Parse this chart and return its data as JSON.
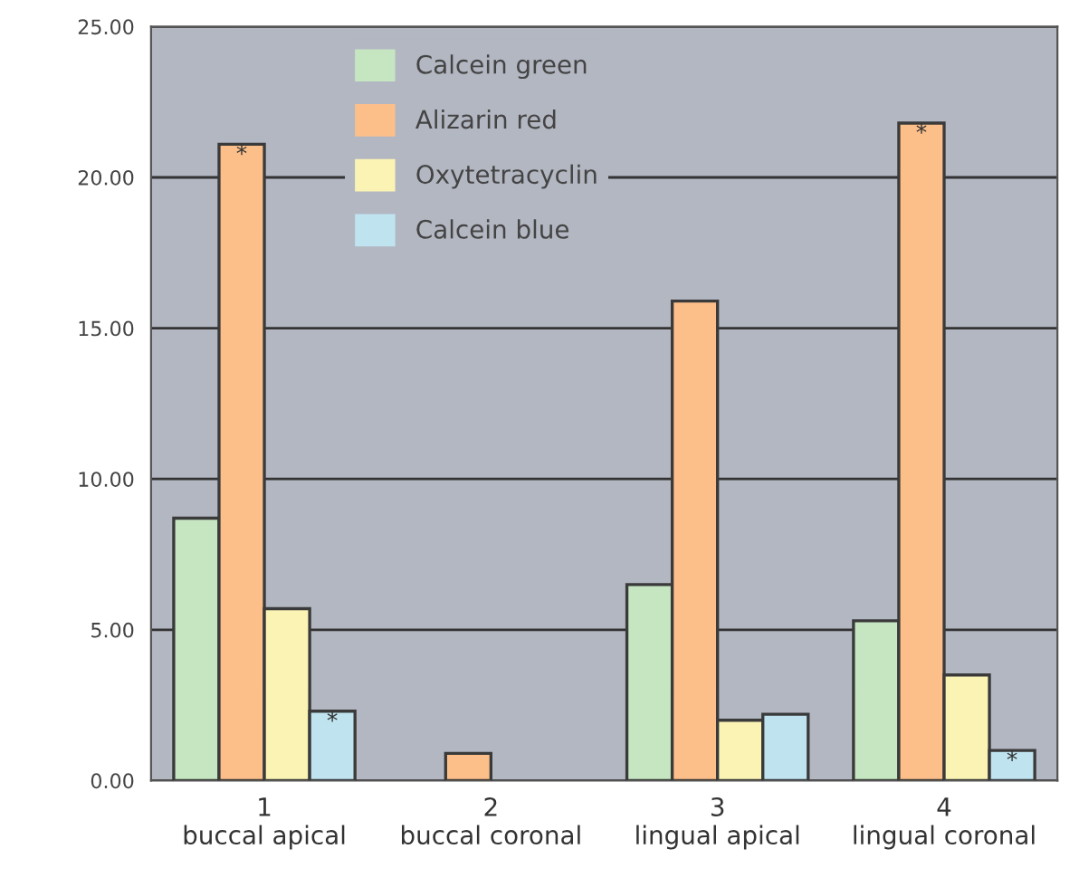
{
  "chart_data": {
    "type": "bar",
    "categories": [
      "1\nbuccal apical",
      "2\nbuccal coronal",
      "3\nlingual apical",
      "4\nlingual coronal"
    ],
    "series": [
      {
        "name": "Calcein green",
        "color": "#c6e6c2",
        "values": [
          8.7,
          null,
          6.5,
          5.3
        ]
      },
      {
        "name": "Alizarin red",
        "color": "#fdbf8a",
        "values": [
          21.1,
          0.9,
          15.9,
          21.8
        ],
        "value_labels": [
          "*",
          null,
          null,
          "*"
        ]
      },
      {
        "name": "Oxytetracyclin",
        "color": "#fbf3b4",
        "values": [
          5.7,
          null,
          2.0,
          3.5
        ]
      },
      {
        "name": "Calcein blue",
        "color": "#bfe4f0",
        "values": [
          2.3,
          null,
          2.2,
          1.0
        ],
        "value_labels": [
          "*",
          null,
          null,
          "*"
        ]
      }
    ],
    "ylim": [
      0,
      25
    ],
    "yticks": [
      {
        "value": 0,
        "label": "0.00"
      },
      {
        "value": 5,
        "label": "5.00"
      },
      {
        "value": 10,
        "label": "10.00"
      },
      {
        "value": 15,
        "label": "15.00"
      },
      {
        "value": 20,
        "label": "20.00"
      },
      {
        "value": 25,
        "label": "25.00"
      }
    ],
    "grid": "y",
    "legend": "top"
  }
}
